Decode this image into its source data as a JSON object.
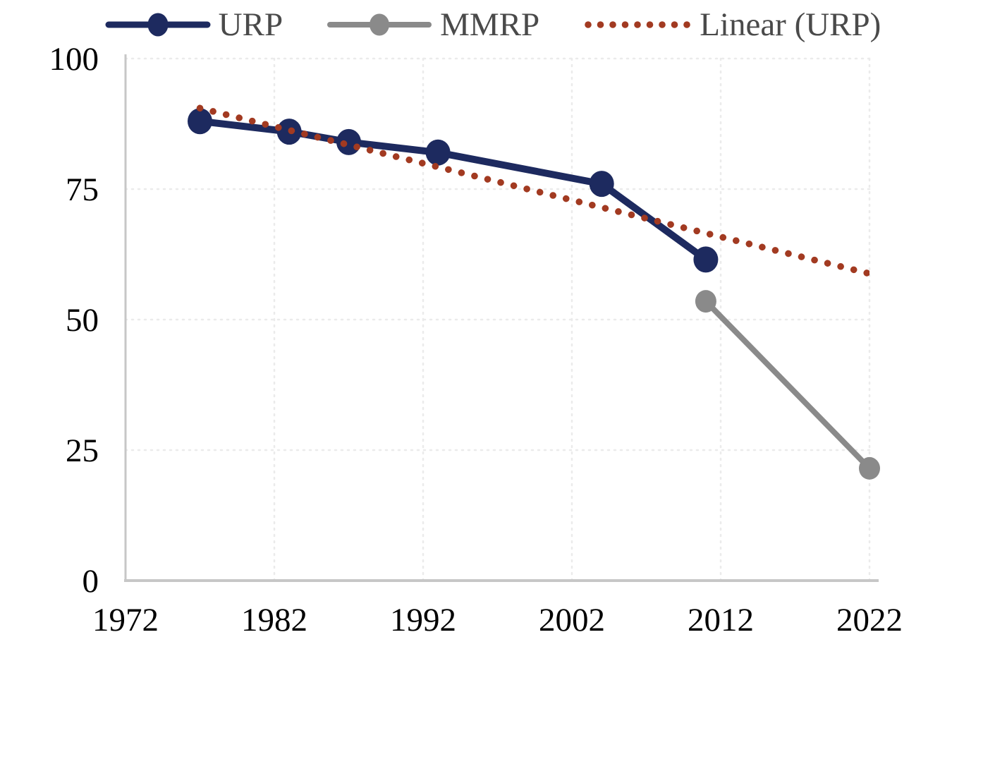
{
  "page": {
    "background_color": "#ffffff"
  },
  "chart_data": {
    "type": "line",
    "title": "",
    "xlabel": "",
    "ylabel": "",
    "x_axis": {
      "range": [
        1972,
        2022
      ],
      "tick_values": [
        1972,
        1982,
        1992,
        2002,
        2012,
        2022
      ],
      "ticks": [
        "1972",
        "1982",
        "1992",
        "2002",
        "2012",
        "2022"
      ]
    },
    "y_axis": {
      "range": [
        0,
        100
      ],
      "tick_values": [
        0,
        25,
        50,
        75,
        100
      ],
      "ticks": [
        "0",
        "25",
        "50",
        "75",
        "100"
      ]
    },
    "grid": {
      "style": "dotted",
      "horizontal_values": [
        25,
        50,
        75,
        100
      ],
      "vertical_values": [
        1982,
        1992,
        2002,
        2012,
        2022
      ]
    },
    "series": [
      {
        "name": "URP",
        "type": "line",
        "color": "#1d2a5f",
        "line_width": 10,
        "marker": "circle",
        "marker_rx": 17.5,
        "marker_ry": 18.5,
        "points": [
          {
            "x": 1977,
            "y": 88
          },
          {
            "x": 1983,
            "y": 86
          },
          {
            "x": 1987,
            "y": 84
          },
          {
            "x": 1993,
            "y": 82
          },
          {
            "x": 2004,
            "y": 76
          },
          {
            "x": 2011,
            "y": 61.5
          }
        ]
      },
      {
        "name": "MMRP",
        "type": "line",
        "color": "#8a8a8a",
        "line_width": 8,
        "marker": "circle",
        "marker_rx": 15,
        "marker_ry": 16,
        "points": [
          {
            "x": 2011,
            "y": 53.5
          },
          {
            "x": 2022,
            "y": 21.5
          }
        ]
      },
      {
        "name": "Linear (URP)",
        "type": "trendline",
        "style": "dotted",
        "color": "#a23a21",
        "points": [
          {
            "x": 1977,
            "y": 90.5
          },
          {
            "x": 2022,
            "y": 58.8
          }
        ]
      }
    ],
    "legend_position": "bottom"
  },
  "legend": {
    "items": [
      {
        "label": "URP"
      },
      {
        "label": "MMRP"
      },
      {
        "label": "Linear (URP)"
      }
    ]
  }
}
